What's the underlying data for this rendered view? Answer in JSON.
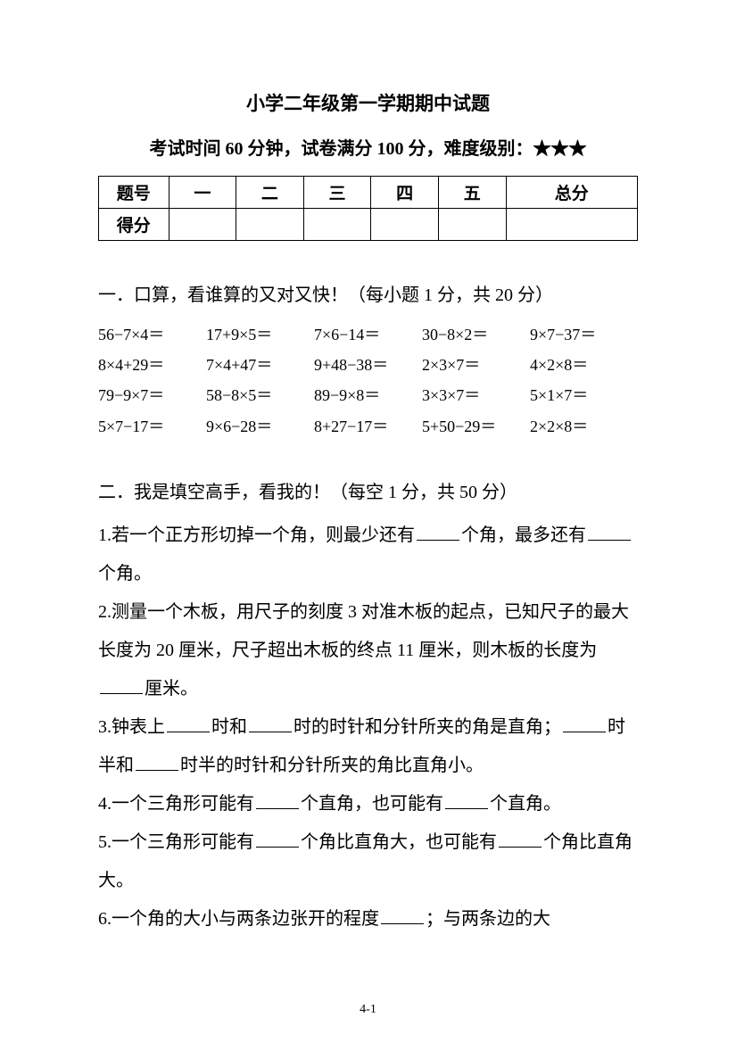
{
  "title": "小学二年级第一学期期中试题",
  "subtitle": "考试时间 60 分钟，试卷满分 100 分，难度级别：★★★",
  "table": {
    "headers": [
      "题号",
      "一",
      "二",
      "三",
      "四",
      "五",
      "总分"
    ],
    "scoreLabel": "得分"
  },
  "section1": {
    "title": "一．口算，看谁算的又对又快！（每小题 1 分，共 20 分）",
    "problems": [
      "56−7×4＝",
      "17+9×5＝",
      "7×6−14＝",
      "30−8×2＝",
      "9×7−37＝",
      "8×4+29＝",
      "7×4+47＝",
      "9+48−38＝",
      "2×3×7＝",
      "4×2×8＝",
      "79−9×7＝",
      "58−8×5＝",
      "89−9×8＝",
      "3×3×7＝",
      "5×1×7＝",
      "5×7−17＝",
      "9×6−28＝",
      "8+27−17＝",
      "5+50−29＝",
      "2×2×8＝"
    ]
  },
  "section2": {
    "title": "二．我是填空高手，看我的！（每空 1 分，共 50 分）",
    "q1a": "1.若一个正方形切掉一个角，则最少还有",
    "q1b": "个角，最多还有",
    "q1c": "个角。",
    "q2a": "2.测量一个木板，用尺子的刻度 3 对准木板的起点，已知尺子的最大长度为 20 厘米，尺子超出木板的终点 11 厘米，则木板的长度为",
    "q2b": "厘米。",
    "q3a": "3.钟表上",
    "q3b": "时和",
    "q3c": "时的时针和分针所夹的角是直角；",
    "q3d": "时半和",
    "q3e": "时半的时针和分针所夹的角比直角小。",
    "q4a": "4.一个三角形可能有",
    "q4b": "个直角，也可能有",
    "q4c": "个直角。",
    "q5a": "5.一个三角形可能有",
    "q5b": "个角比直角大，也可能有",
    "q5c": "个角比直角大。",
    "q6a": "6.一个角的大小与两条边张开的程度",
    "q6b": "；与两条边的大"
  },
  "pageNum": "4-1"
}
